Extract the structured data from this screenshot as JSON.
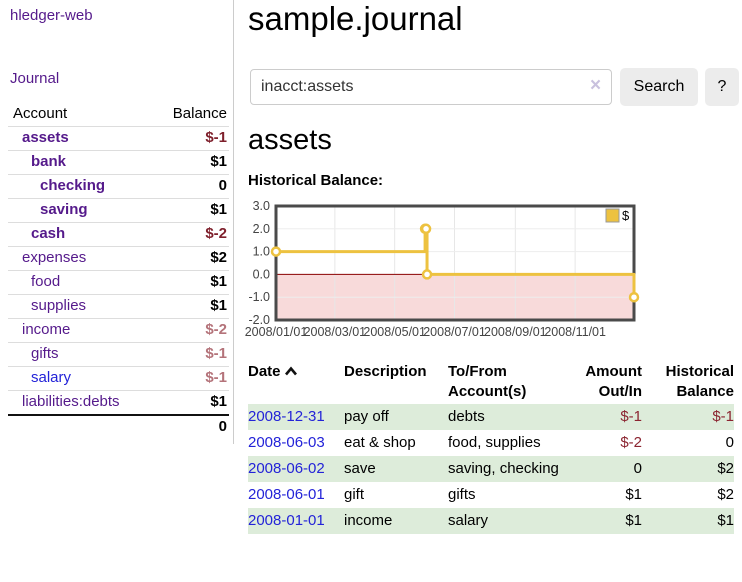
{
  "sidebar": {
    "brand": "hledger-web",
    "nav": {
      "journal": "Journal"
    },
    "table": {
      "account_header": "Account",
      "balance_header": "Balance",
      "accounts": [
        {
          "name": "assets",
          "balance": "$-1"
        },
        {
          "name": "bank",
          "balance": "$1"
        },
        {
          "name": "checking",
          "balance": "0"
        },
        {
          "name": "saving",
          "balance": "$1"
        },
        {
          "name": "cash",
          "balance": "$-2"
        },
        {
          "name": "expenses",
          "balance": "$2"
        },
        {
          "name": "food",
          "balance": "$1"
        },
        {
          "name": "supplies",
          "balance": "$1"
        },
        {
          "name": "income",
          "balance": "$-2"
        },
        {
          "name": "gifts",
          "balance": "$-1"
        },
        {
          "name": "salary",
          "balance": "$-1"
        },
        {
          "name": "liabilities:debts",
          "balance": "$1"
        }
      ],
      "total": "0"
    }
  },
  "main": {
    "title": "sample.journal",
    "search": {
      "value": "inacct:assets",
      "clear_icon": "×",
      "button": "Search",
      "help_button": "?"
    },
    "account_heading": "assets",
    "chart_heading": "Historical Balance:"
  },
  "chart_data": {
    "type": "line",
    "title": "Historical Balance",
    "step": "after",
    "series": [
      {
        "name": "$",
        "points": [
          [
            "2008-01-01",
            1
          ],
          [
            "2008-06-01",
            2
          ],
          [
            "2008-06-02",
            2
          ],
          [
            "2008-06-03",
            0
          ],
          [
            "2008-12-31",
            -1
          ]
        ]
      }
    ],
    "ylim": [
      -2,
      3
    ],
    "y_ticks": [
      "3.0",
      "2.0",
      "1.0",
      "0.0",
      "-1.0",
      "-2.0"
    ],
    "x_ticks": [
      "2008/01/01",
      "2008/03/01",
      "2008/05/01",
      "2008/07/01",
      "2008/09/01",
      "2008/11/01"
    ],
    "legend": {
      "label": "$",
      "position": "top-right"
    },
    "line_color": "#edc240",
    "negative_region_color": "#f8dada",
    "zero_line_color": "#8b0000",
    "border_color": "#4a4a4a",
    "grid": true
  },
  "register": {
    "headers": {
      "date": "Date",
      "description": "Description",
      "account_l1": "To/From",
      "account_l2": "Account(s)",
      "amount_l1": "Amount",
      "amount_l2": "Out/In",
      "balance_l1": "Historical",
      "balance_l2": "Balance"
    },
    "rows": [
      {
        "date": "2008-12-31",
        "description": "pay off",
        "account": "debts",
        "amount": "$-1",
        "balance": "$-1"
      },
      {
        "date": "2008-06-03",
        "description": "eat & shop",
        "account": "food, supplies",
        "amount": "$-2",
        "balance": "0"
      },
      {
        "date": "2008-06-02",
        "description": "save",
        "account": "saving, checking",
        "amount": "0",
        "balance": "$2"
      },
      {
        "date": "2008-06-01",
        "description": "gift",
        "account": "gifts",
        "amount": "$1",
        "balance": "$2"
      },
      {
        "date": "2008-01-01",
        "description": "income",
        "account": "salary",
        "amount": "$1",
        "balance": "$1"
      }
    ]
  }
}
